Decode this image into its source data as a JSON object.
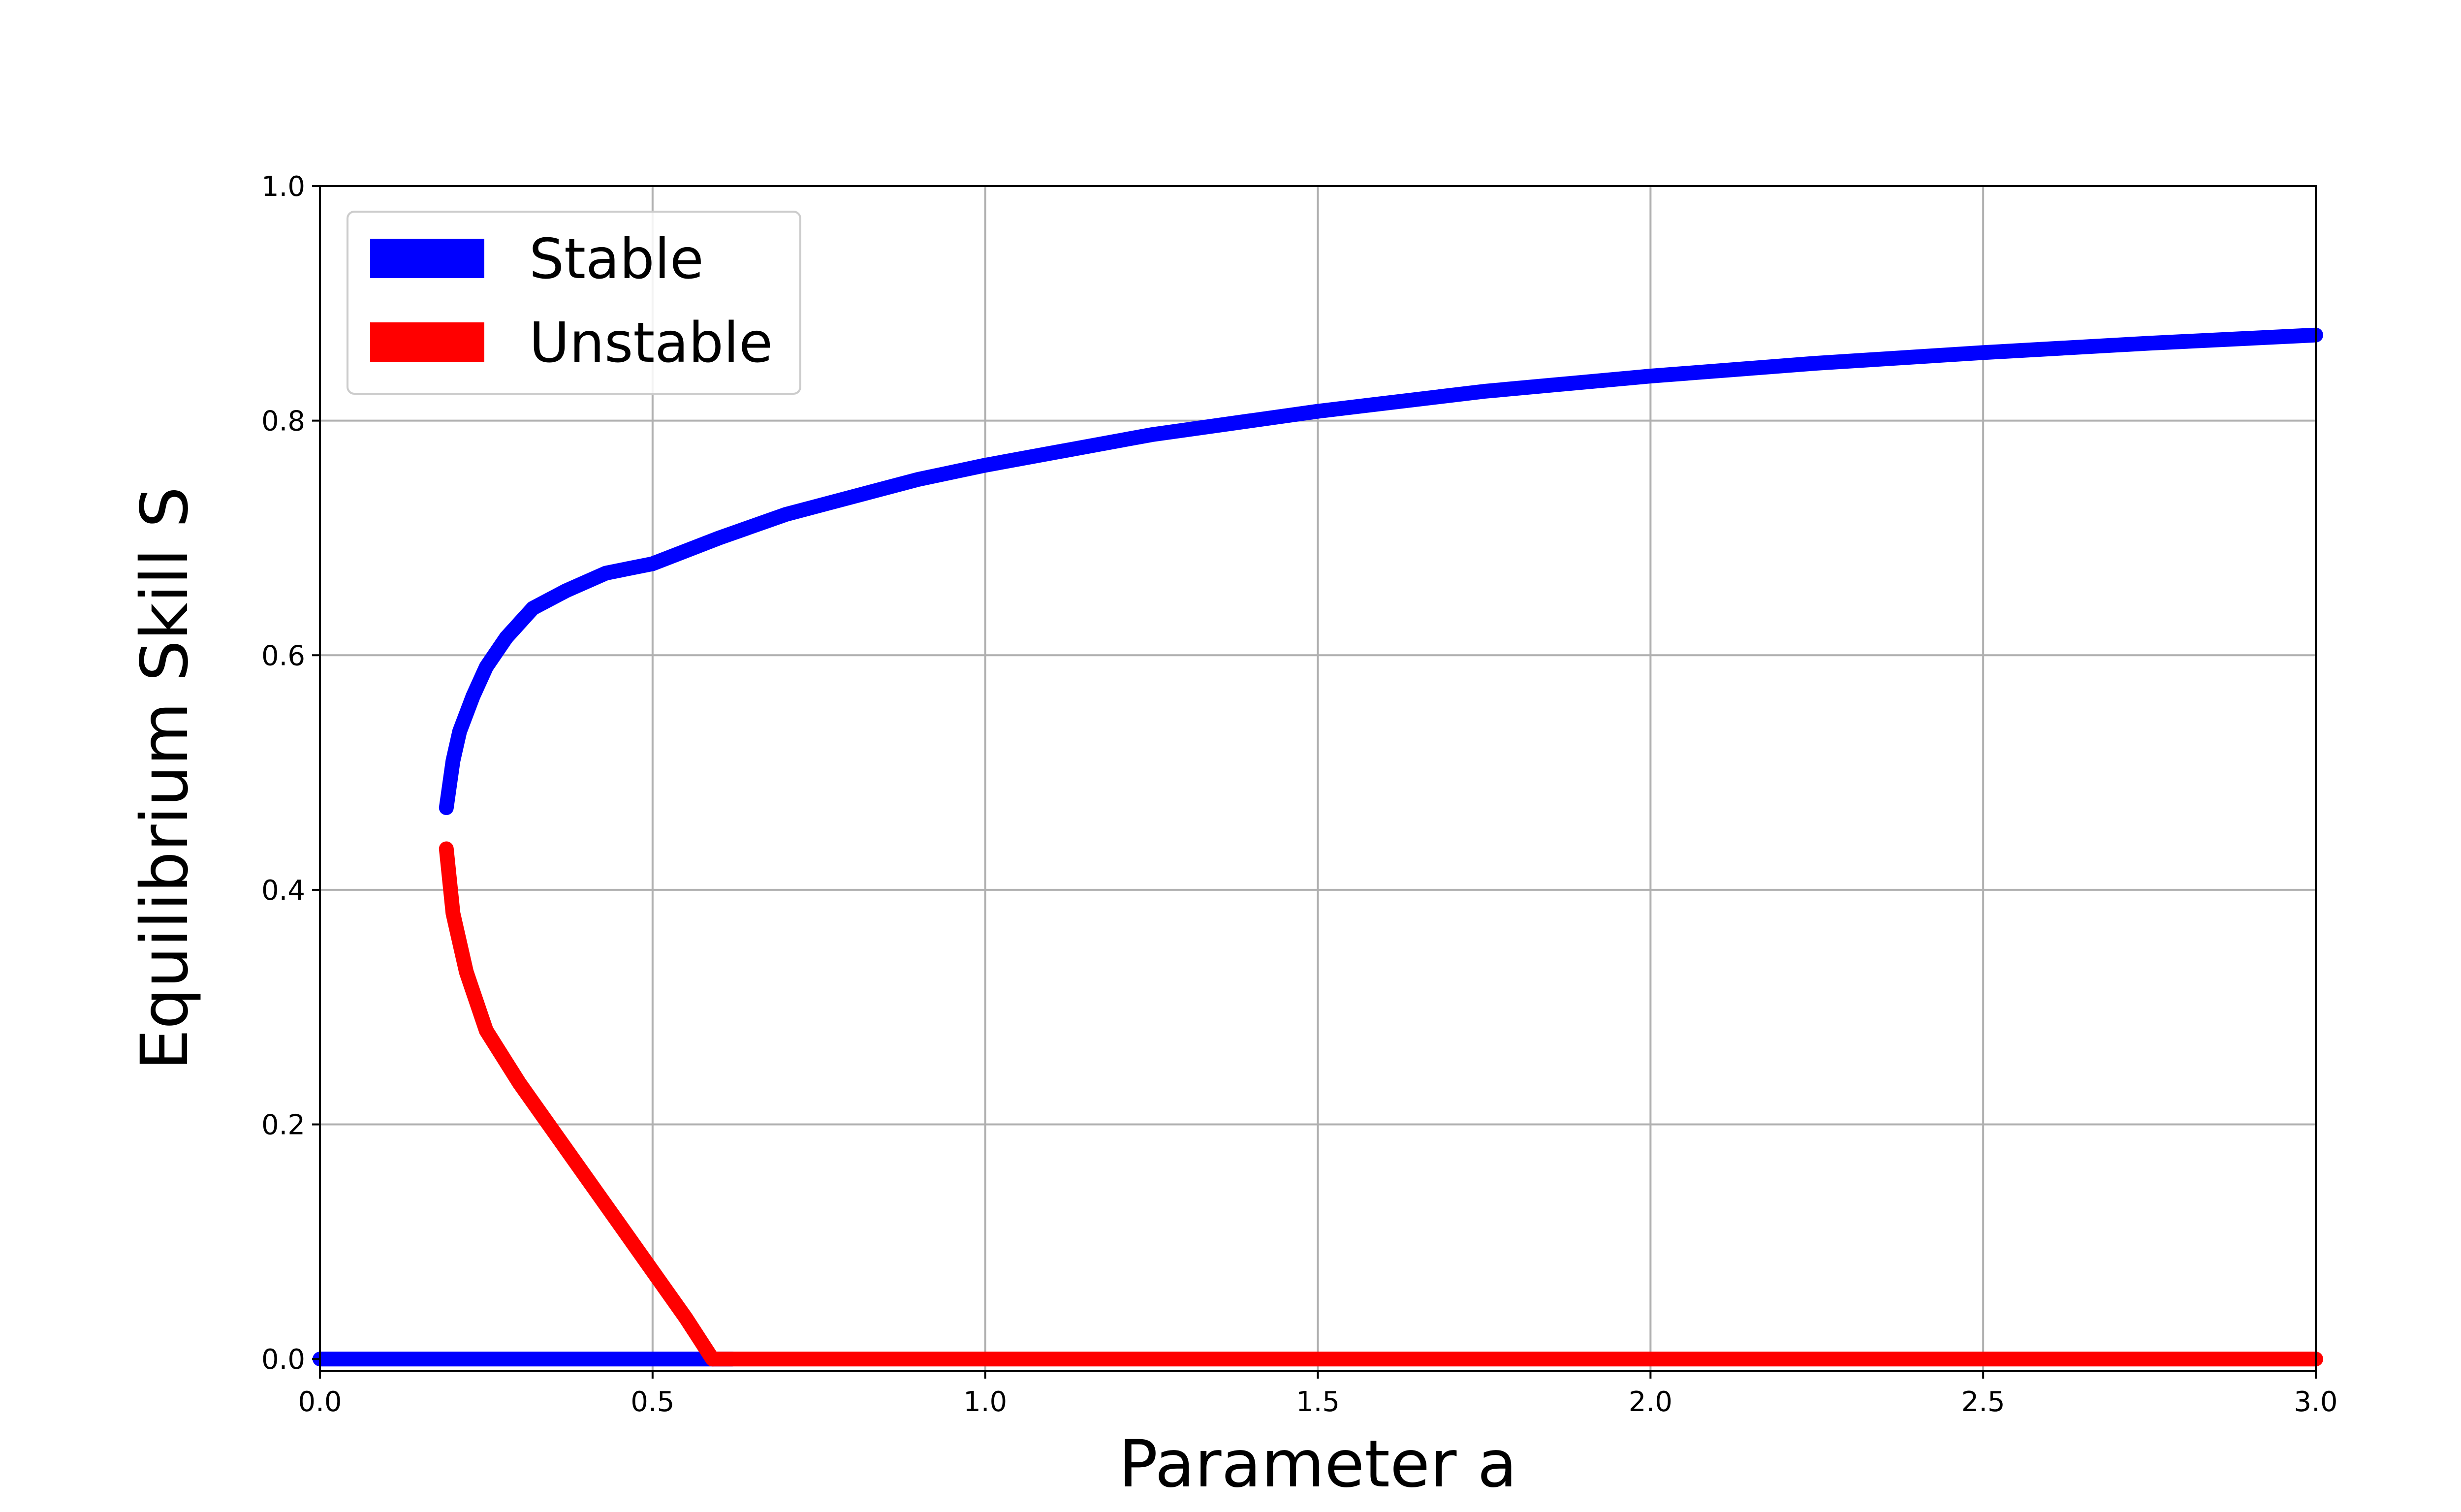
{
  "chart_data": {
    "type": "line",
    "xlabel": "Parameter a",
    "ylabel": "Equilibrium Skill S",
    "xlim": [
      0.0,
      3.0
    ],
    "ylim": [
      -0.01,
      1.0
    ],
    "xticks": [
      "0.0",
      "0.5",
      "1.0",
      "1.5",
      "2.0",
      "2.5",
      "3.0"
    ],
    "yticks": [
      "0.0",
      "0.2",
      "0.4",
      "0.6",
      "0.8",
      "1.0"
    ],
    "grid": true,
    "legend": {
      "placement": "top-left",
      "entries": [
        {
          "label": "Stable",
          "color": "#0000ff"
        },
        {
          "label": "Unstable",
          "color": "#ff0000"
        }
      ]
    },
    "series": [
      {
        "name": "Stable",
        "color": "#0000ff",
        "segments": [
          {
            "x": [
              0.19,
              0.2,
              0.21,
              0.23,
              0.25,
              0.28,
              0.32,
              0.37,
              0.43,
              0.5,
              0.6,
              0.7,
              0.8,
              0.9,
              1.0,
              1.25,
              1.5,
              1.75,
              2.0,
              2.25,
              2.5,
              2.75,
              3.0
            ],
            "y": [
              0.47,
              0.51,
              0.535,
              0.565,
              0.59,
              0.615,
              0.64,
              0.655,
              0.67,
              0.678,
              0.7,
              0.72,
              0.735,
              0.75,
              0.762,
              0.788,
              0.808,
              0.825,
              0.838,
              0.849,
              0.858,
              0.866,
              0.873
            ]
          },
          {
            "x": [
              0.0,
              0.62
            ],
            "y": [
              0.0,
              0.0
            ]
          }
        ]
      },
      {
        "name": "Unstable",
        "color": "#ff0000",
        "segments": [
          {
            "x": [
              0.19,
              0.2,
              0.22,
              0.25,
              0.3,
              0.35,
              0.4,
              0.45,
              0.5,
              0.55,
              0.59
            ],
            "y": [
              0.435,
              0.38,
              0.33,
              0.28,
              0.235,
              0.195,
              0.155,
              0.115,
              0.075,
              0.035,
              0.0
            ]
          },
          {
            "x": [
              0.59,
              3.0
            ],
            "y": [
              0.0,
              0.0
            ]
          }
        ]
      }
    ]
  }
}
